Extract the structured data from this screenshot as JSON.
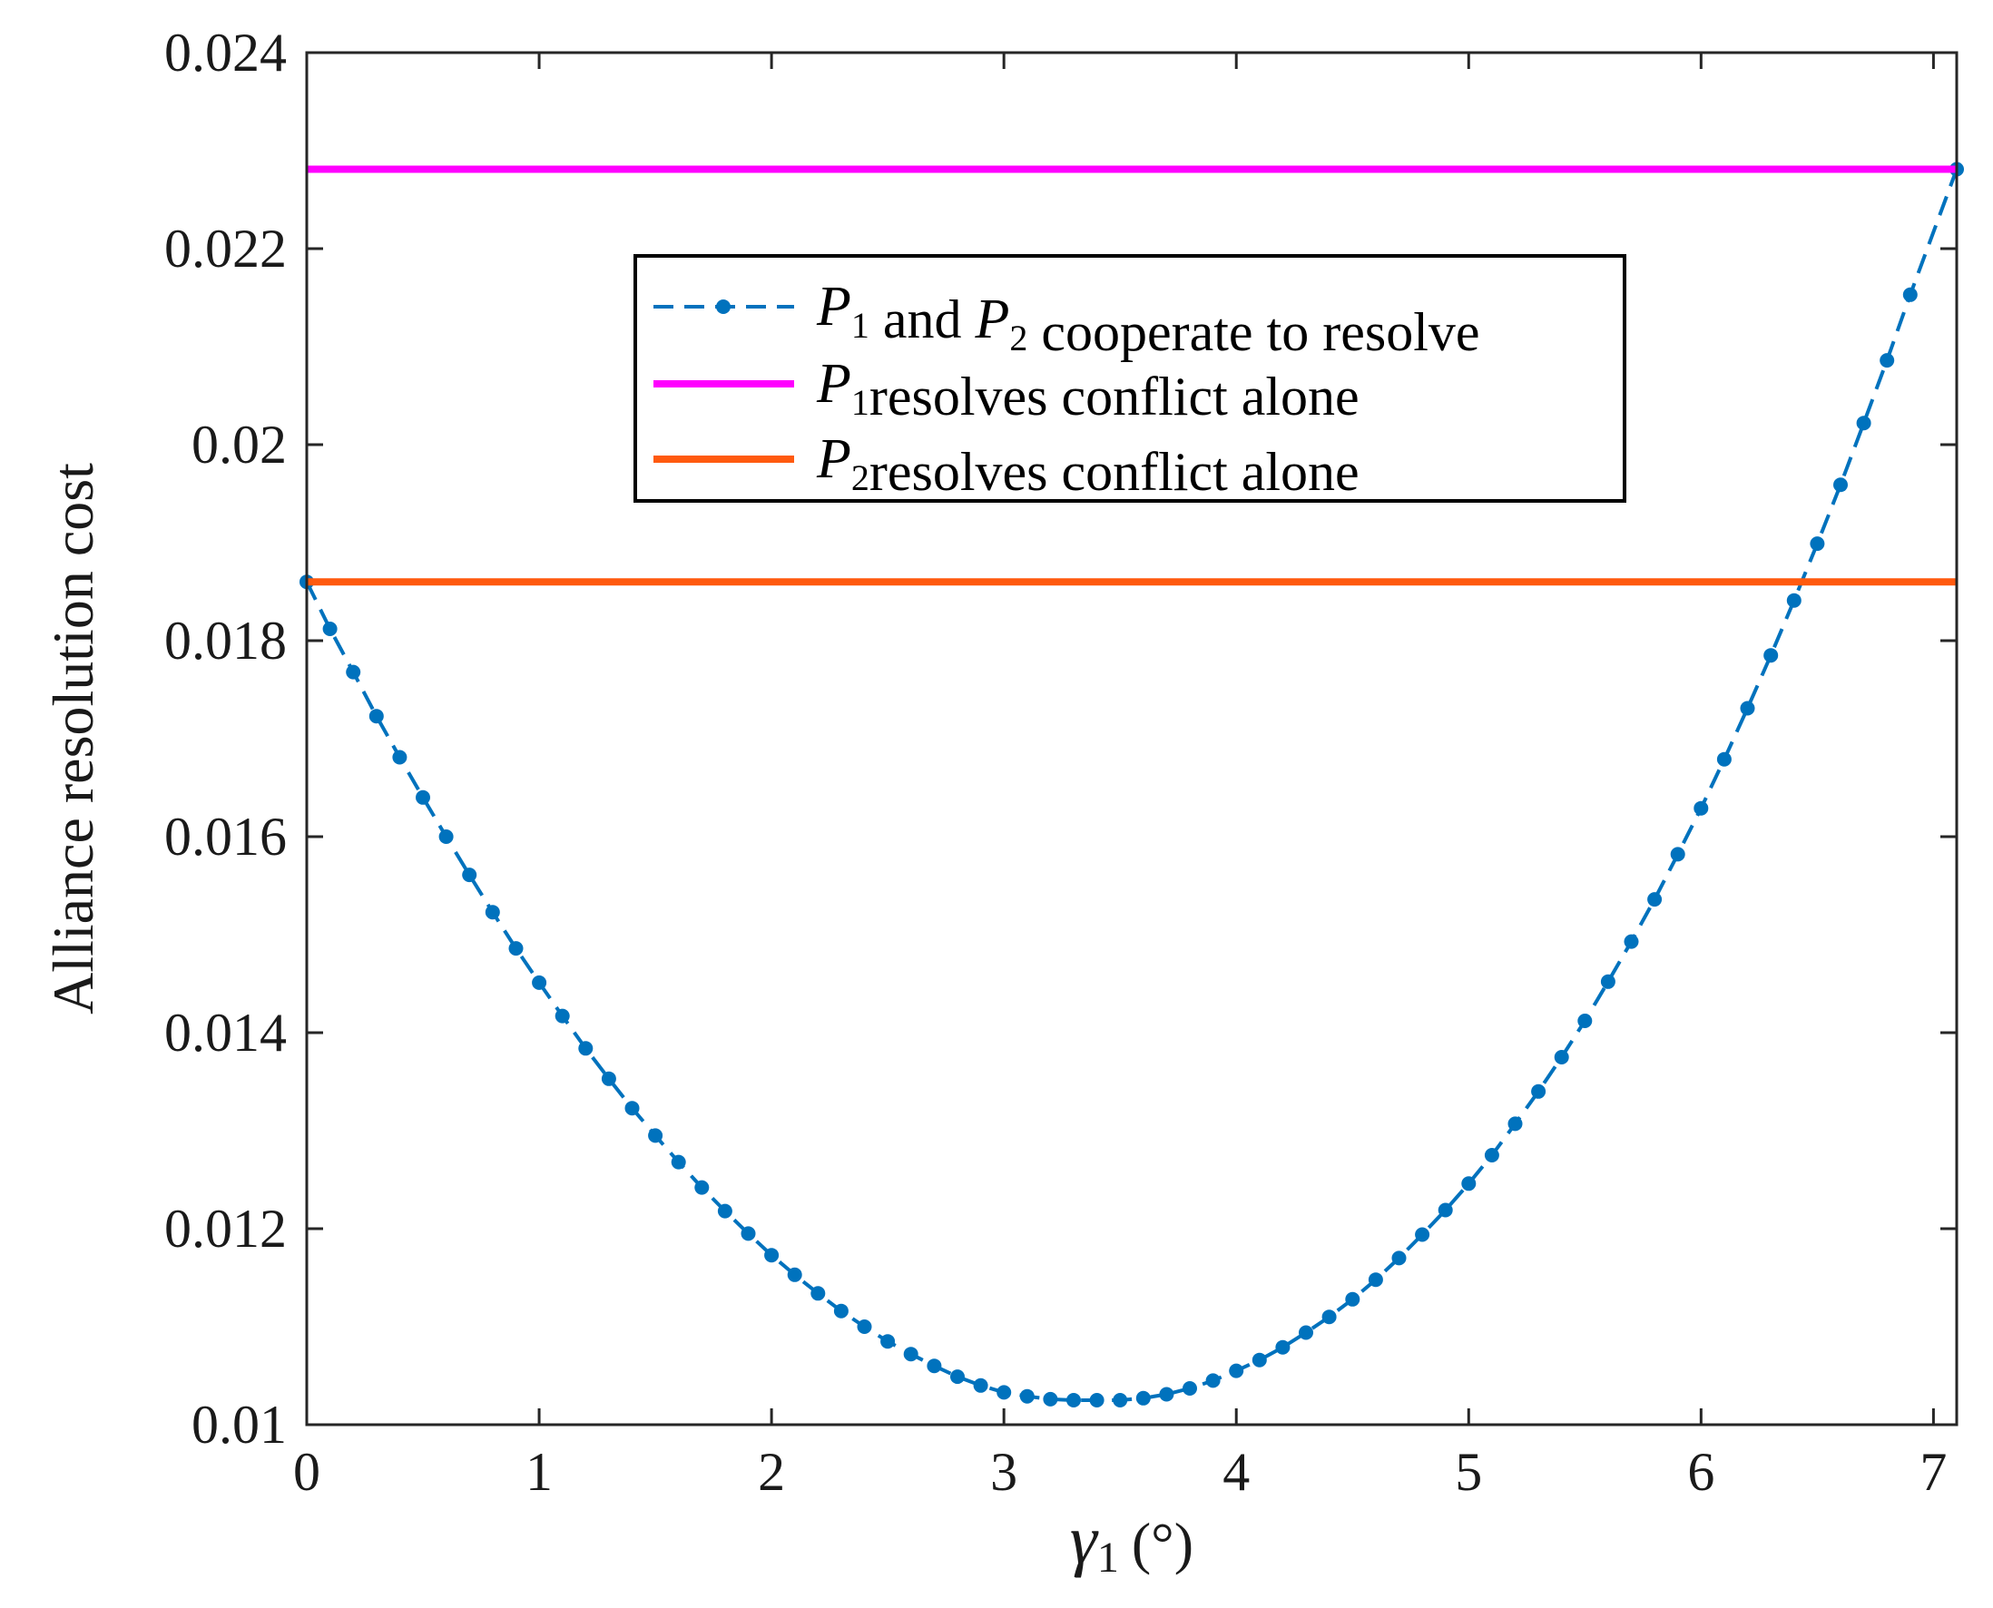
{
  "chart_data": {
    "type": "line",
    "title": "",
    "xlabel": {
      "symbol": "γ",
      "subscript": "1",
      "unit": "(°)"
    },
    "ylabel": "Alliance resolution cost",
    "xlim": [
      0,
      7.1
    ],
    "ylim": [
      0.01,
      0.024
    ],
    "x_ticks": [
      {
        "value": 0,
        "label": "0"
      },
      {
        "value": 1,
        "label": "1"
      },
      {
        "value": 2,
        "label": "2"
      },
      {
        "value": 3,
        "label": "3"
      },
      {
        "value": 4,
        "label": "4"
      },
      {
        "value": 5,
        "label": "5"
      },
      {
        "value": 6,
        "label": "6"
      },
      {
        "value": 7,
        "label": "7"
      }
    ],
    "y_ticks": [
      {
        "value": 0.01,
        "label": "0.01"
      },
      {
        "value": 0.012,
        "label": "0.012"
      },
      {
        "value": 0.014,
        "label": "0.014"
      },
      {
        "value": 0.016,
        "label": "0.016"
      },
      {
        "value": 0.018,
        "label": "0.018"
      },
      {
        "value": 0.02,
        "label": "0.02"
      },
      {
        "value": 0.022,
        "label": "0.022"
      },
      {
        "value": 0.024,
        "label": "0.024"
      }
    ],
    "grid": false,
    "legend_position": "top-center",
    "series": [
      {
        "name": "P1 and P2 cooperate to resolve",
        "legend": {
          "parts": [
            {
              "sym": "P",
              "sub": "1"
            },
            {
              "text": " and "
            },
            {
              "sym": "P",
              "sub": "2"
            },
            {
              "text": " cooperate to resolve"
            }
          ]
        },
        "color": "#0072BD",
        "style": "dashed-dotted-markers",
        "x": [
          0,
          0.1,
          0.2,
          0.3,
          0.4,
          0.5,
          0.6,
          0.7,
          0.8,
          0.9,
          1.0,
          1.1,
          1.2,
          1.3,
          1.4,
          1.5,
          1.6,
          1.7,
          1.8,
          1.9,
          2.0,
          2.1,
          2.2,
          2.3,
          2.4,
          2.5,
          2.6,
          2.7,
          2.8,
          2.9,
          3.0,
          3.1,
          3.2,
          3.3,
          3.4,
          3.5,
          3.6,
          3.7,
          3.8,
          3.9,
          4.0,
          4.1,
          4.2,
          4.3,
          4.4,
          4.5,
          4.6,
          4.7,
          4.8,
          4.9,
          5.0,
          5.1,
          5.2,
          5.3,
          5.4,
          5.5,
          5.6,
          5.7,
          5.8,
          5.9,
          6.0,
          6.1,
          6.2,
          6.3,
          6.4,
          6.5,
          6.6,
          6.7,
          6.8,
          6.9,
          7.1
        ],
        "y": [
          0.0186,
          0.01812,
          0.01768,
          0.01723,
          0.01681,
          0.0164,
          0.016,
          0.01561,
          0.01523,
          0.01486,
          0.01451,
          0.01417,
          0.01384,
          0.01353,
          0.01323,
          0.01295,
          0.01268,
          0.01242,
          0.01218,
          0.01195,
          0.01173,
          0.01153,
          0.01134,
          0.01116,
          0.011,
          0.01085,
          0.01072,
          0.0106,
          0.01049,
          0.0104,
          0.01033,
          0.01029,
          0.01026,
          0.01025,
          0.01025,
          0.01025,
          0.01027,
          0.01031,
          0.01037,
          0.01045,
          0.01055,
          0.01066,
          0.01079,
          0.01094,
          0.0111,
          0.01128,
          0.01148,
          0.0117,
          0.01194,
          0.01219,
          0.01246,
          0.01275,
          0.01307,
          0.0134,
          0.01375,
          0.01412,
          0.01452,
          0.01493,
          0.01536,
          0.01582,
          0.01629,
          0.01679,
          0.01731,
          0.01785,
          0.01841,
          0.01899,
          0.01959,
          0.02022,
          0.02086,
          0.02153,
          0.02281
        ]
      },
      {
        "name": "P1 resolves conflict alone",
        "legend": {
          "parts": [
            {
              "sym": "P",
              "sub": "1"
            },
            {
              "text": "resolves conflict alone"
            }
          ]
        },
        "color": "#FF00FF",
        "style": "solid",
        "x": [
          0,
          7.1
        ],
        "y": [
          0.02281,
          0.02281
        ]
      },
      {
        "name": "P2 resolves conflict alone",
        "legend": {
          "parts": [
            {
              "sym": "P",
              "sub": "2"
            },
            {
              "text": "resolves conflict alone"
            }
          ]
        },
        "color": "#FF5A0F",
        "style": "solid",
        "x": [
          0,
          7.1
        ],
        "y": [
          0.0186,
          0.0186
        ]
      }
    ]
  }
}
